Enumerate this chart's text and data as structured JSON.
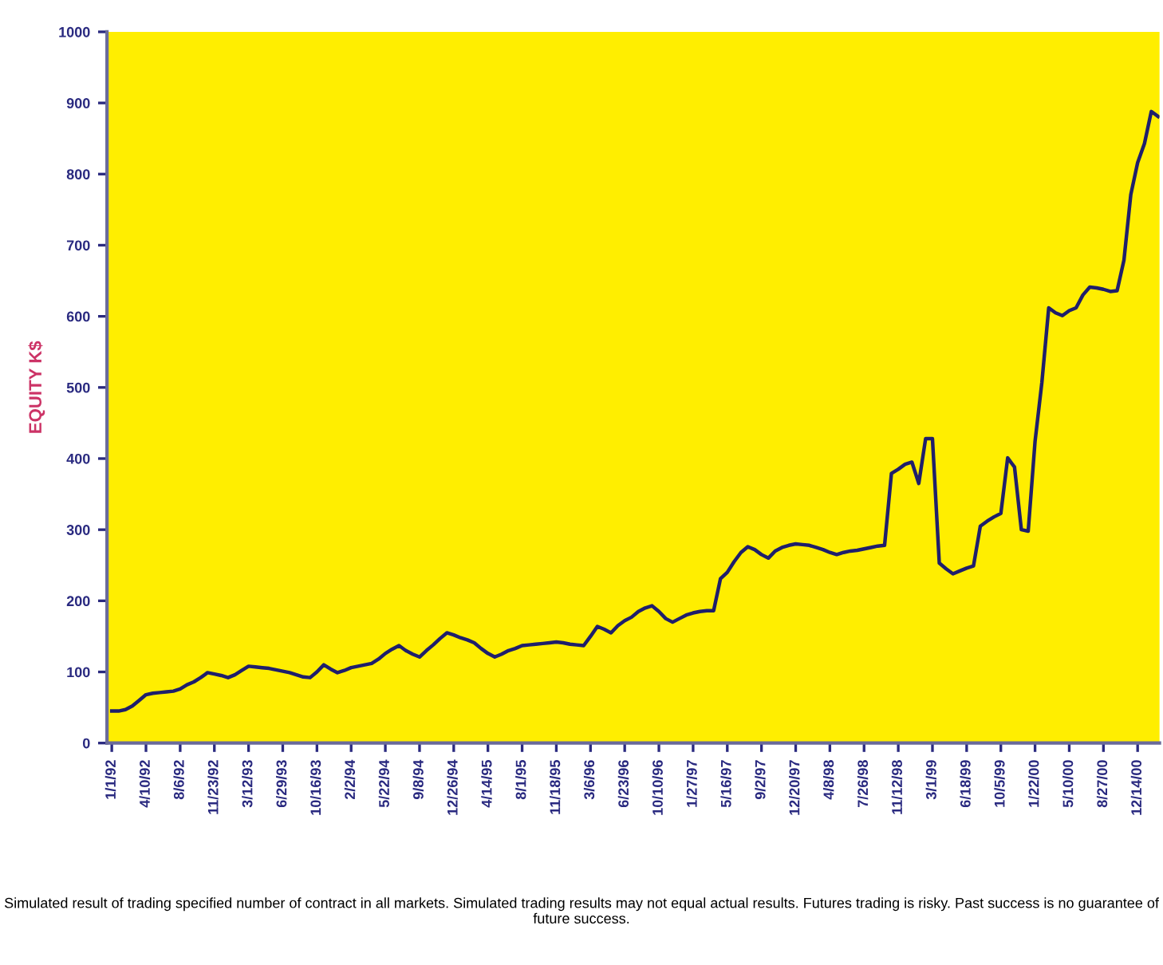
{
  "chart_data": {
    "type": "line",
    "ylabel": "EQUITY K$",
    "categories": [
      "1/1/92",
      null,
      null,
      null,
      null,
      "4/10/92",
      null,
      null,
      null,
      null,
      "8/6/92",
      null,
      null,
      null,
      null,
      "11/23/92",
      null,
      null,
      null,
      null,
      "3/12/93",
      null,
      null,
      null,
      null,
      "6/29/93",
      null,
      null,
      null,
      null,
      "10/16/93",
      null,
      null,
      null,
      null,
      "2/2/94",
      null,
      null,
      null,
      null,
      "5/22/94",
      null,
      null,
      null,
      null,
      "9/8/94",
      null,
      null,
      null,
      null,
      "12/26/94",
      null,
      null,
      null,
      null,
      "4/14/95",
      null,
      null,
      null,
      null,
      "8/1/95",
      null,
      null,
      null,
      null,
      "11/18/95",
      null,
      null,
      null,
      null,
      "3/6/96",
      null,
      null,
      null,
      null,
      "6/23/96",
      null,
      null,
      null,
      null,
      "10/10/96",
      null,
      null,
      null,
      null,
      "1/27/97",
      null,
      null,
      null,
      null,
      "5/16/97",
      null,
      null,
      null,
      null,
      "9/2/97",
      null,
      null,
      null,
      null,
      "12/20/97",
      null,
      null,
      null,
      null,
      "4/8/98",
      null,
      null,
      null,
      null,
      "7/26/98",
      null,
      null,
      null,
      null,
      "11/12/98",
      null,
      null,
      null,
      null,
      "3/1/99",
      null,
      null,
      null,
      null,
      "6/18/99",
      null,
      null,
      null,
      null,
      "10/5/99",
      null,
      null,
      null,
      null,
      "1/22/00",
      null,
      null,
      null,
      null,
      "5/10/00",
      null,
      null,
      null,
      null,
      "8/27/00",
      null,
      null,
      null,
      null,
      "12/14/00",
      null,
      null,
      null
    ],
    "series": [
      {
        "color": "#1f1f6b",
        "values": [
          45,
          45,
          47,
          52,
          60,
          68,
          70,
          71,
          72,
          73,
          76,
          82,
          86,
          92,
          99,
          97,
          95,
          92,
          96,
          102,
          108,
          107,
          106,
          105,
          103,
          101,
          99,
          96,
          93,
          92,
          100,
          110,
          104,
          99,
          102,
          106,
          108,
          110,
          112,
          118,
          126,
          132,
          137,
          130,
          125,
          121,
          130,
          138,
          147,
          155,
          152,
          148,
          145,
          141,
          133,
          126,
          121,
          125,
          130,
          133,
          137,
          138,
          139,
          140,
          141,
          142,
          141,
          139,
          138,
          137,
          150,
          164,
          160,
          155,
          165,
          172,
          177,
          185,
          190,
          193,
          185,
          175,
          170,
          175,
          180,
          183,
          185,
          186,
          186,
          231,
          240,
          255,
          268,
          276,
          272,
          265,
          260,
          270,
          275,
          278,
          280,
          279,
          278,
          275,
          272,
          268,
          265,
          268,
          270,
          271,
          273,
          275,
          277,
          278,
          379,
          385,
          392,
          395,
          365,
          428,
          428,
          253,
          245,
          238,
          242,
          246,
          249,
          305,
          312,
          318,
          323,
          401,
          388,
          300,
          298,
          424,
          507,
          612,
          605,
          601,
          608,
          612,
          630,
          641,
          640,
          638,
          635,
          636,
          679,
          771,
          816,
          843,
          888,
          881
        ]
      }
    ],
    "ylim": [
      0,
      1000
    ],
    "yticks": [
      0,
      100,
      200,
      300,
      400,
      500,
      600,
      700,
      800,
      900,
      1000
    ],
    "annotations": [
      "Simulated result of trading specified number of contract in all markets. Simulated trading results may not equal actual results. Futures trading is risky. Past success is no guarantee of future success."
    ]
  }
}
